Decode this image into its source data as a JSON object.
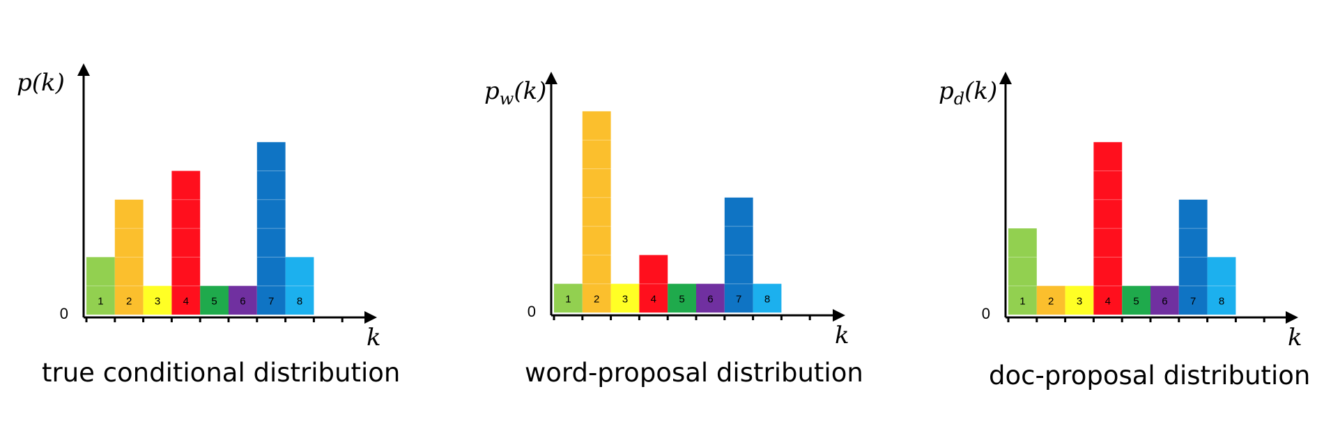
{
  "chart_data": [
    {
      "type": "bar",
      "ylabel": "p(k)",
      "ylabel_sub": "",
      "xlabel": "k",
      "zero_label": "0",
      "caption": "true conditional distribution",
      "categories": [
        "1",
        "2",
        "3",
        "4",
        "5",
        "6",
        "7",
        "8"
      ],
      "values": [
        2,
        4,
        1,
        5,
        1,
        1,
        6,
        2
      ],
      "grid": false
    },
    {
      "type": "bar",
      "ylabel": "p",
      "ylabel_sub": "w",
      "ylabel_suffix": "(k)",
      "xlabel": "k",
      "zero_label": "0",
      "caption": "word-proposal distribution",
      "categories": [
        "1",
        "2",
        "3",
        "4",
        "5",
        "6",
        "7",
        "8"
      ],
      "values": [
        1,
        7,
        1,
        2,
        1,
        1,
        4,
        1
      ],
      "grid": false
    },
    {
      "type": "bar",
      "ylabel": "p",
      "ylabel_sub": "d",
      "ylabel_suffix": "(k)",
      "xlabel": "k",
      "zero_label": "0",
      "caption": "doc-proposal distribution",
      "categories": [
        "1",
        "2",
        "3",
        "4",
        "5",
        "6",
        "7",
        "8"
      ],
      "values": [
        3,
        1,
        1,
        6,
        1,
        1,
        4,
        2
      ],
      "grid": false
    }
  ],
  "colors": [
    "#92d050",
    "#fbbf2d",
    "#ffff25",
    "#ff0f1d",
    "#1faa4c",
    "#7030a0",
    "#0f74c4",
    "#1cb0ee"
  ]
}
